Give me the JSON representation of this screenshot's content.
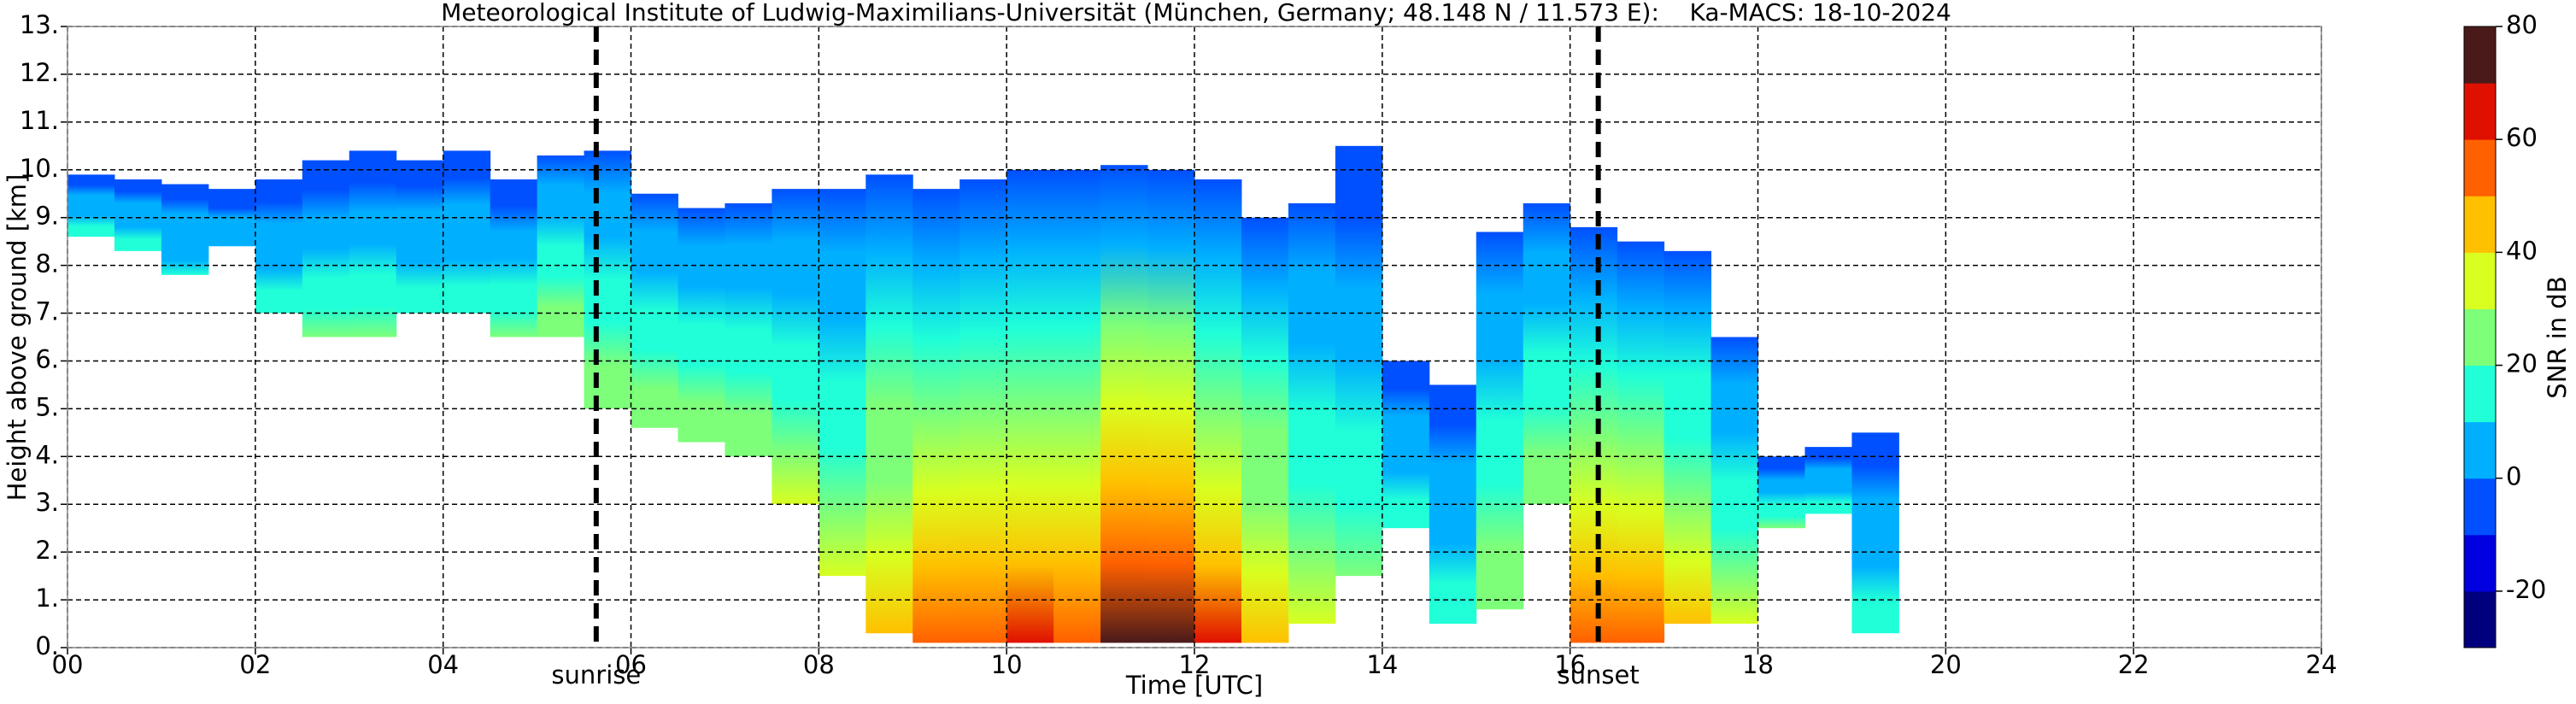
{
  "chart_data": {
    "type": "time-height",
    "title": "Meteorological Institute of Ludwig-Maximilians-Universität (München, Germany; 48.148 N / 11.573 E):    Ka-MACS: 18-10-2024",
    "xlabel": "Time [UTC]",
    "ylabel": "Height above ground [km]",
    "xlim": [
      0,
      24
    ],
    "xticks": [
      {
        "value": 0,
        "label": "00"
      },
      {
        "value": 2,
        "label": "02"
      },
      {
        "value": 4,
        "label": "04"
      },
      {
        "value": 6,
        "label": "06"
      },
      {
        "value": 8,
        "label": "08"
      },
      {
        "value": 10,
        "label": "10"
      },
      {
        "value": 12,
        "label": "12"
      },
      {
        "value": 14,
        "label": "14"
      },
      {
        "value": 16,
        "label": "16"
      },
      {
        "value": 18,
        "label": "18"
      },
      {
        "value": 20,
        "label": "20"
      },
      {
        "value": 22,
        "label": "22"
      },
      {
        "value": 24,
        "label": "24"
      }
    ],
    "ylim": [
      0,
      13
    ],
    "yticks": [
      {
        "value": 0,
        "label": "0."
      },
      {
        "value": 1,
        "label": "1."
      },
      {
        "value": 2,
        "label": "2."
      },
      {
        "value": 3,
        "label": "3."
      },
      {
        "value": 4,
        "label": "4."
      },
      {
        "value": 5,
        "label": "5."
      },
      {
        "value": 6,
        "label": "6."
      },
      {
        "value": 7,
        "label": "7."
      },
      {
        "value": 8,
        "label": "8."
      },
      {
        "value": 9,
        "label": "9."
      },
      {
        "value": 10,
        "label": "10."
      },
      {
        "value": 11,
        "label": "11."
      },
      {
        "value": 12,
        "label": "12."
      },
      {
        "value": 13,
        "label": "13."
      }
    ],
    "grid": true,
    "x": [
      0.25,
      0.75,
      1.25,
      1.75,
      2.25,
      2.75,
      3.25,
      3.75,
      4.25,
      4.75,
      5.25,
      5.75,
      6.25,
      6.75,
      7.25,
      7.75,
      8.25,
      8.75,
      9.25,
      9.75,
      10.25,
      10.75,
      11.25,
      11.75,
      12.25,
      12.75,
      13.25,
      13.75,
      14.25,
      14.75,
      15.25,
      15.75,
      16.25,
      16.75,
      17.25,
      17.75,
      18.25,
      18.75,
      19.25
    ],
    "cloud_top": [
      9.9,
      9.8,
      9.7,
      9.6,
      9.8,
      10.2,
      10.4,
      10.2,
      10.4,
      9.8,
      10.3,
      10.4,
      9.5,
      9.2,
      9.3,
      9.6,
      9.6,
      9.9,
      9.6,
      9.8,
      10.0,
      10.0,
      10.1,
      10.0,
      9.8,
      9.0,
      9.3,
      10.5,
      6.0,
      5.5,
      8.7,
      9.3,
      8.8,
      8.5,
      8.3,
      6.5,
      4.0,
      4.2,
      4.5
    ],
    "cloud_base": [
      8.6,
      8.3,
      7.8,
      8.4,
      7.0,
      6.5,
      6.5,
      7.0,
      7.0,
      6.5,
      6.5,
      5.0,
      4.6,
      4.3,
      4.0,
      3.0,
      1.5,
      0.3,
      0.1,
      0.1,
      0.1,
      0.1,
      0.1,
      0.1,
      0.1,
      0.1,
      0.5,
      1.5,
      2.5,
      0.5,
      0.8,
      3.0,
      0.1,
      0.1,
      0.5,
      0.5,
      2.5,
      2.8,
      0.3
    ],
    "max_snr": [
      15,
      15,
      10,
      5,
      15,
      20,
      20,
      15,
      15,
      20,
      25,
      25,
      25,
      25,
      25,
      30,
      30,
      45,
      55,
      55,
      60,
      55,
      70,
      70,
      60,
      45,
      30,
      20,
      15,
      15,
      25,
      25,
      55,
      55,
      40,
      30,
      20,
      15,
      15
    ],
    "annotations": [
      {
        "x": 5.63,
        "text": "sunrise"
      },
      {
        "x": 16.3,
        "text": "sunset"
      }
    ],
    "colorbar": {
      "label": "SNR in dB",
      "lim": [
        -30,
        80
      ],
      "ticks": [
        -20,
        0,
        20,
        40,
        60,
        80
      ],
      "colors": [
        "#00007f",
        "#0000e0",
        "#0050ff",
        "#00b0ff",
        "#20ffd8",
        "#7dff7a",
        "#d8ff20",
        "#ffc000",
        "#ff6000",
        "#e01000",
        "#4a1a1a"
      ]
    }
  }
}
